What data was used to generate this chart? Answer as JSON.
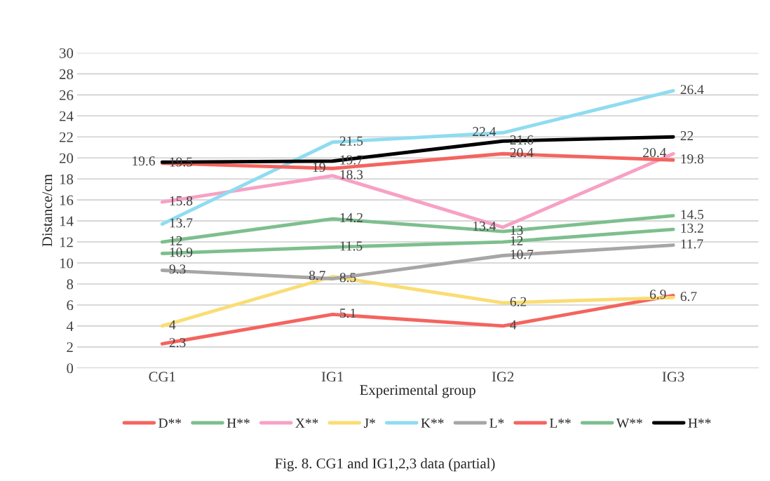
{
  "chart_data": {
    "type": "line",
    "xlabel": "Experimental group",
    "ylabel": "Distance/cm",
    "categories": [
      "CG1",
      "IG1",
      "IG2",
      "IG3"
    ],
    "ylim": [
      0,
      30
    ],
    "yticks": [
      0,
      2,
      4,
      6,
      8,
      10,
      12,
      14,
      16,
      18,
      20,
      22,
      24,
      26,
      28,
      30
    ],
    "grid": "y",
    "legend": "bottom",
    "data_labels": true,
    "marker": "none",
    "line_style": "solid",
    "series": [
      {
        "name": "D**",
        "color": "#f4645f",
        "values": [
          2.3,
          5.1,
          4,
          6.9
        ]
      },
      {
        "name": "H**",
        "color": "#7dbf8e",
        "values": [
          12,
          14.2,
          13,
          14.5
        ]
      },
      {
        "name": "X**",
        "color": "#f7a1c4",
        "values": [
          15.8,
          18.3,
          13.4,
          20.4
        ]
      },
      {
        "name": "J*",
        "color": "#fadd73",
        "values": [
          4,
          8.7,
          6.2,
          6.7
        ]
      },
      {
        "name": "K**",
        "color": "#8fdcf0",
        "values": [
          13.7,
          21.5,
          22.4,
          26.4
        ]
      },
      {
        "name": "L*",
        "color": "#a8a5a5",
        "values": [
          9.3,
          8.5,
          10.7,
          11.7
        ]
      },
      {
        "name": "L**",
        "color": "#f4645f",
        "values": [
          19.5,
          19,
          20.4,
          19.8
        ]
      },
      {
        "name": "W**",
        "color": "#7dbf8e",
        "values": [
          10.9,
          11.5,
          12,
          13.2
        ]
      },
      {
        "name": "H**",
        "color": "#000000",
        "values": [
          19.6,
          19.7,
          21.6,
          22
        ]
      }
    ],
    "annotations": [
      "Fig. 8. CG1 and IG1,2,3 data (partial)"
    ]
  }
}
